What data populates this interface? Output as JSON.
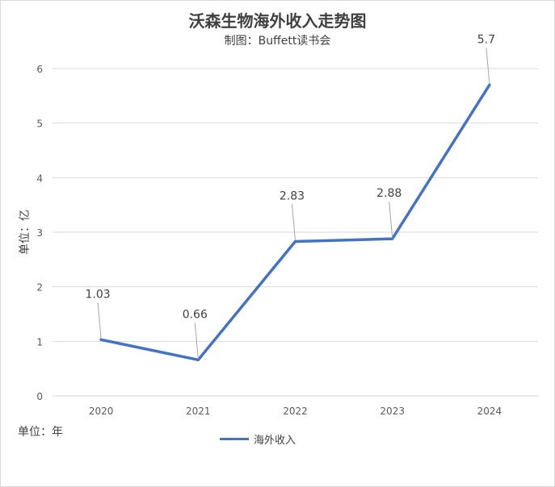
{
  "chart_data": {
    "type": "line",
    "title": "沃森生物海外收入走势图",
    "subtitle": "制图：Buffett读书会",
    "ylabel": "单位：亿",
    "xunit_label": "单位：年",
    "categories": [
      "2020",
      "2021",
      "2022",
      "2023",
      "2024"
    ],
    "series": [
      {
        "name": "海外收入",
        "values": [
          1.03,
          0.66,
          2.83,
          2.88,
          5.7
        ],
        "labels": [
          "1.03",
          "0.66",
          "2.83",
          "2.88",
          "5.7"
        ],
        "color": "#4472C4"
      }
    ],
    "ylim": [
      0,
      6
    ],
    "yticks": [
      "0",
      "1",
      "2",
      "3",
      "4",
      "5",
      "6"
    ],
    "grid": true,
    "legend_position": "bottom"
  }
}
